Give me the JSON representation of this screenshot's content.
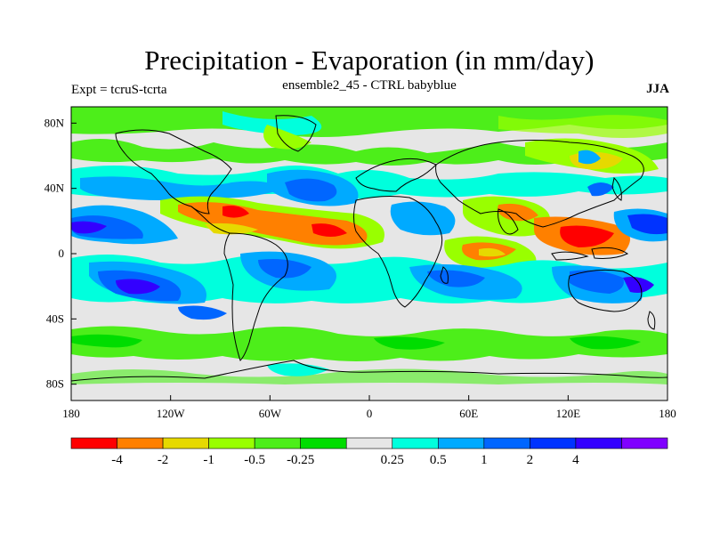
{
  "header": {
    "title": "Precipitation - Evaporation (in mm/day)",
    "experiment": "Expt = tcruS-tcrta",
    "run": "ensemble2_45 - CTRL babyblue",
    "season": "JJA"
  },
  "map": {
    "projection": "cylindrical-equidistant",
    "lon_range": [
      180,
      -180
    ],
    "lat_range": [
      -90,
      90
    ],
    "lon_ticks": [
      {
        "value": -180,
        "label": "180"
      },
      {
        "value": -120,
        "label": "120W"
      },
      {
        "value": -60,
        "label": "60W"
      },
      {
        "value": 0,
        "label": "0"
      },
      {
        "value": 60,
        "label": "60E"
      },
      {
        "value": 120,
        "label": "120E"
      },
      {
        "value": 180,
        "label": "180"
      }
    ],
    "lat_ticks": [
      {
        "value": 80,
        "label": "80N"
      },
      {
        "value": 40,
        "label": "40N"
      },
      {
        "value": 0,
        "label": "0"
      },
      {
        "value": -40,
        "label": "40S"
      },
      {
        "value": -80,
        "label": "80S"
      }
    ],
    "background_color": "#e6e6e6"
  },
  "colorbar": {
    "colors": [
      "#ff0000",
      "#ff8000",
      "#e6d900",
      "#99ff00",
      "#4dee1a",
      "#00dd00",
      "#e6e6e6",
      "#00ffdd",
      "#00aaff",
      "#0066ff",
      "#0033ff",
      "#3300ff",
      "#8000ff"
    ],
    "labels": [
      "-4",
      "-2",
      "-1",
      "-0.5",
      "-0.25",
      "0.25",
      "0.5",
      "1",
      "2",
      "4"
    ]
  },
  "features": [
    {
      "lon": -100,
      "lat": 20,
      "value": -2
    },
    {
      "lon": -30,
      "lat": 15,
      "value": -3
    },
    {
      "lon": 130,
      "lat": 10,
      "value": -2
    },
    {
      "lon": 70,
      "lat": 2,
      "value": -1
    },
    {
      "lon": -150,
      "lat": 10,
      "value": 2
    },
    {
      "lon": 160,
      "lat": 15,
      "value": 2
    },
    {
      "lon": -130,
      "lat": -20,
      "value": 2
    },
    {
      "lon": 50,
      "lat": -20,
      "value": 1
    },
    {
      "lon": -40,
      "lat": 35,
      "value": 1
    },
    {
      "lon": 0,
      "lat": -60,
      "value": -0.25
    }
  ]
}
